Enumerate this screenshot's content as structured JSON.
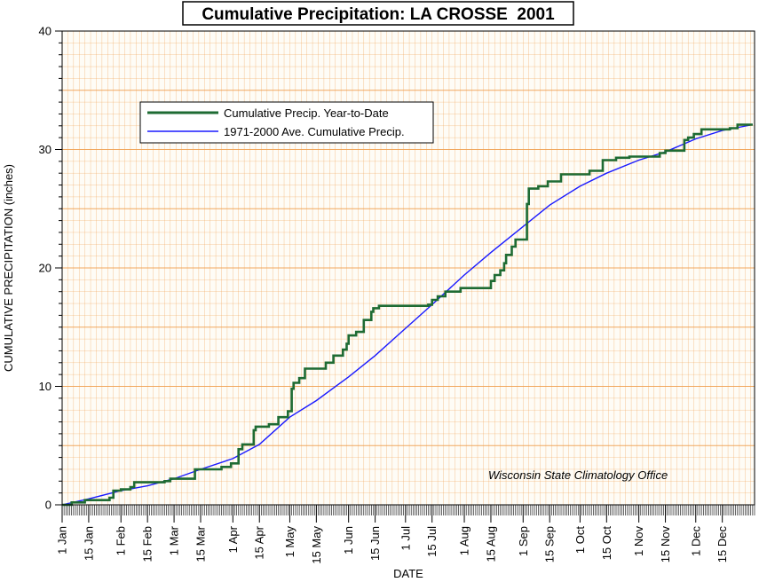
{
  "chart_data": {
    "type": "line",
    "title": "Cumulative Precipitation: LA CROSSE  2001",
    "xlabel": "DATE",
    "ylabel": "CUMULATIVE PRECIPITATION (inches)",
    "ylim": [
      0,
      40
    ],
    "xlim": [
      "2001-01-01",
      "2001-12-31"
    ],
    "y_ticks": [
      0,
      10,
      20,
      30,
      40
    ],
    "x_tick_labels": [
      "1 Jan",
      "15 Jan",
      "1 Feb",
      "15 Feb",
      "1 Mar",
      "15 Mar",
      "1 Apr",
      "15 Apr",
      "1 May",
      "15 May",
      "1 Jun",
      "15 Jun",
      "1 Jul",
      "15 Jul",
      "1 Aug",
      "15 Aug",
      "1 Sep",
      "15 Sep",
      "1 Oct",
      "15 Oct",
      "1 Nov",
      "15 Nov",
      "1 Dec",
      "15 Dec"
    ],
    "x_tick_dates": [
      "2001-01-01",
      "2001-01-15",
      "2001-02-01",
      "2001-02-15",
      "2001-03-01",
      "2001-03-15",
      "2001-04-01",
      "2001-04-15",
      "2001-05-01",
      "2001-05-15",
      "2001-06-01",
      "2001-06-15",
      "2001-07-01",
      "2001-07-15",
      "2001-08-01",
      "2001-08-15",
      "2001-09-01",
      "2001-09-15",
      "2001-10-01",
      "2001-10-15",
      "2001-11-01",
      "2001-11-15",
      "2001-12-01",
      "2001-12-15"
    ],
    "grid": true,
    "legend_position": "top-left",
    "annotation": "Wisconsin State Climatology Office",
    "background_color": "#fefcf6",
    "grid_color": "#f0a050",
    "series": [
      {
        "name": "Cumulative Precip. Year-to-Date",
        "color": "#1e6b33",
        "step": true,
        "points": [
          [
            "2001-01-01",
            0.0
          ],
          [
            "2001-01-06",
            0.2
          ],
          [
            "2001-01-13",
            0.4
          ],
          [
            "2001-01-26",
            0.6
          ],
          [
            "2001-01-28",
            1.2
          ],
          [
            "2001-02-01",
            1.3
          ],
          [
            "2001-02-06",
            1.5
          ],
          [
            "2001-02-08",
            1.9
          ],
          [
            "2001-02-24",
            2.0
          ],
          [
            "2001-02-27",
            2.2
          ],
          [
            "2001-03-12",
            3.0
          ],
          [
            "2001-03-26",
            3.2
          ],
          [
            "2001-03-31",
            3.5
          ],
          [
            "2001-04-04",
            4.7
          ],
          [
            "2001-04-06",
            5.1
          ],
          [
            "2001-04-12",
            6.3
          ],
          [
            "2001-04-13",
            6.6
          ],
          [
            "2001-04-20",
            6.8
          ],
          [
            "2001-04-25",
            7.4
          ],
          [
            "2001-04-30",
            7.9
          ],
          [
            "2001-05-02",
            9.8
          ],
          [
            "2001-05-03",
            10.3
          ],
          [
            "2001-05-06",
            10.7
          ],
          [
            "2001-05-09",
            11.5
          ],
          [
            "2001-05-20",
            12.0
          ],
          [
            "2001-05-24",
            12.6
          ],
          [
            "2001-05-29",
            13.1
          ],
          [
            "2001-05-31",
            13.6
          ],
          [
            "2001-06-01",
            14.3
          ],
          [
            "2001-06-05",
            14.6
          ],
          [
            "2001-06-09",
            15.6
          ],
          [
            "2001-06-13",
            16.3
          ],
          [
            "2001-06-14",
            16.6
          ],
          [
            "2001-06-17",
            16.8
          ],
          [
            "2001-07-13",
            16.9
          ],
          [
            "2001-07-15",
            17.3
          ],
          [
            "2001-07-18",
            17.6
          ],
          [
            "2001-07-22",
            18.0
          ],
          [
            "2001-07-30",
            18.3
          ],
          [
            "2001-08-15",
            18.9
          ],
          [
            "2001-08-17",
            19.4
          ],
          [
            "2001-08-20",
            19.8
          ],
          [
            "2001-08-22",
            20.4
          ],
          [
            "2001-08-23",
            21.1
          ],
          [
            "2001-08-26",
            21.8
          ],
          [
            "2001-08-28",
            22.4
          ],
          [
            "2001-09-03",
            25.4
          ],
          [
            "2001-09-04",
            26.7
          ],
          [
            "2001-09-09",
            26.9
          ],
          [
            "2001-09-14",
            27.3
          ],
          [
            "2001-09-21",
            27.9
          ],
          [
            "2001-10-06",
            28.2
          ],
          [
            "2001-10-13",
            29.1
          ],
          [
            "2001-10-20",
            29.3
          ],
          [
            "2001-10-27",
            29.4
          ],
          [
            "2001-11-12",
            29.7
          ],
          [
            "2001-11-15",
            29.9
          ],
          [
            "2001-11-25",
            30.8
          ],
          [
            "2001-11-27",
            31.0
          ],
          [
            "2001-11-30",
            31.3
          ],
          [
            "2001-12-04",
            31.7
          ],
          [
            "2001-12-19",
            31.8
          ],
          [
            "2001-12-23",
            32.1
          ],
          [
            "2001-12-31",
            32.1
          ]
        ]
      },
      {
        "name": "1971-2000 Ave. Cumulative Precip.",
        "color": "#1a1aff",
        "step": false,
        "points": [
          [
            "2001-01-01",
            0.0
          ],
          [
            "2001-01-15",
            0.5
          ],
          [
            "2001-02-01",
            1.2
          ],
          [
            "2001-02-15",
            1.6
          ],
          [
            "2001-03-01",
            2.2
          ],
          [
            "2001-03-15",
            3.0
          ],
          [
            "2001-04-01",
            3.9
          ],
          [
            "2001-04-15",
            5.1
          ],
          [
            "2001-05-01",
            7.4
          ],
          [
            "2001-05-15",
            8.8
          ],
          [
            "2001-06-01",
            10.8
          ],
          [
            "2001-06-15",
            12.6
          ],
          [
            "2001-07-01",
            14.9
          ],
          [
            "2001-07-15",
            16.9
          ],
          [
            "2001-08-01",
            19.4
          ],
          [
            "2001-08-15",
            21.3
          ],
          [
            "2001-09-01",
            23.5
          ],
          [
            "2001-09-15",
            25.3
          ],
          [
            "2001-10-01",
            26.9
          ],
          [
            "2001-10-15",
            28.0
          ],
          [
            "2001-11-01",
            29.1
          ],
          [
            "2001-11-15",
            29.8
          ],
          [
            "2001-12-01",
            30.9
          ],
          [
            "2001-12-15",
            31.6
          ],
          [
            "2001-12-31",
            32.1
          ]
        ]
      }
    ]
  }
}
